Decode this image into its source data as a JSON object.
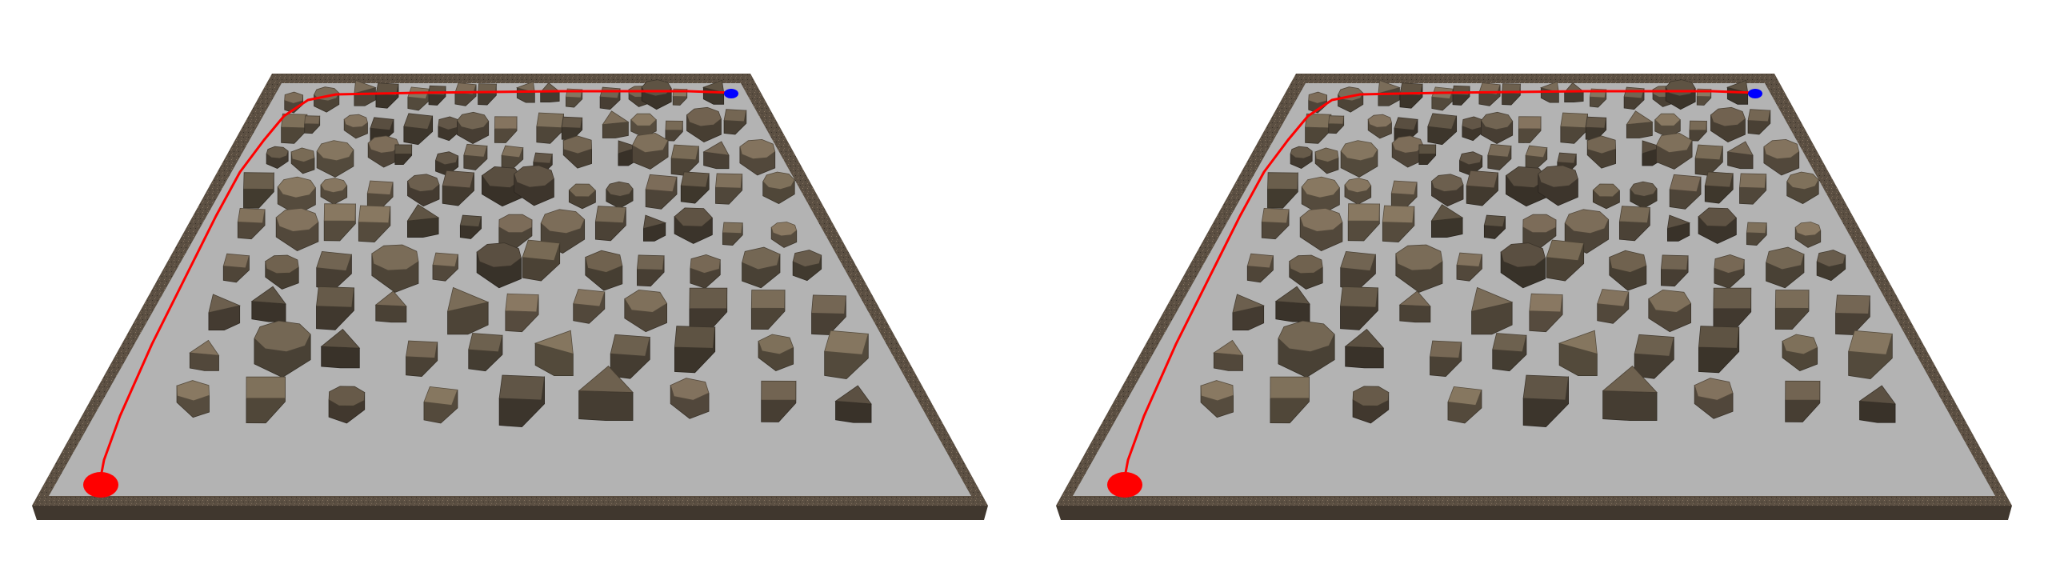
{
  "colors": {
    "background": "#ffffff",
    "floor": "#b3b3b3",
    "wall": "#5b4f42",
    "obstacle": "#5c5142",
    "path": "#ff0000",
    "start_marker": "#ff0000",
    "goal_marker": "#0000ff"
  },
  "views": [
    {
      "name": "left-view",
      "obstacle_count": 124
    },
    {
      "name": "right-view",
      "obstacle_count": 124
    }
  ]
}
